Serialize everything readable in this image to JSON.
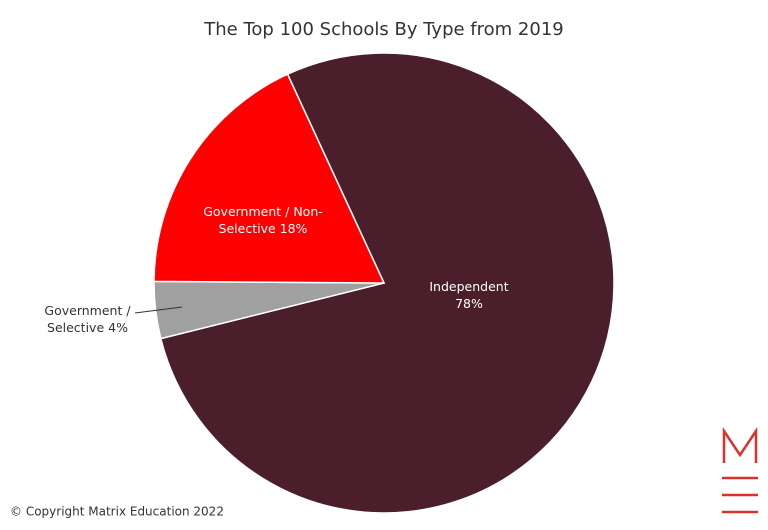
{
  "chart_data": {
    "type": "pie",
    "title": "The Top 100 Schools By Type from 2019",
    "categories": [
      "Independent",
      "Government / Selective",
      "Government / Non-Selective"
    ],
    "values": [
      78,
      4,
      18
    ],
    "value_labels": [
      "78%",
      "4%",
      "18%"
    ],
    "colors": [
      "#4a1e2a",
      "#a0a0a0",
      "#ff0000"
    ]
  },
  "footer": {
    "copyright": "© Copyright Matrix Education 2022"
  }
}
